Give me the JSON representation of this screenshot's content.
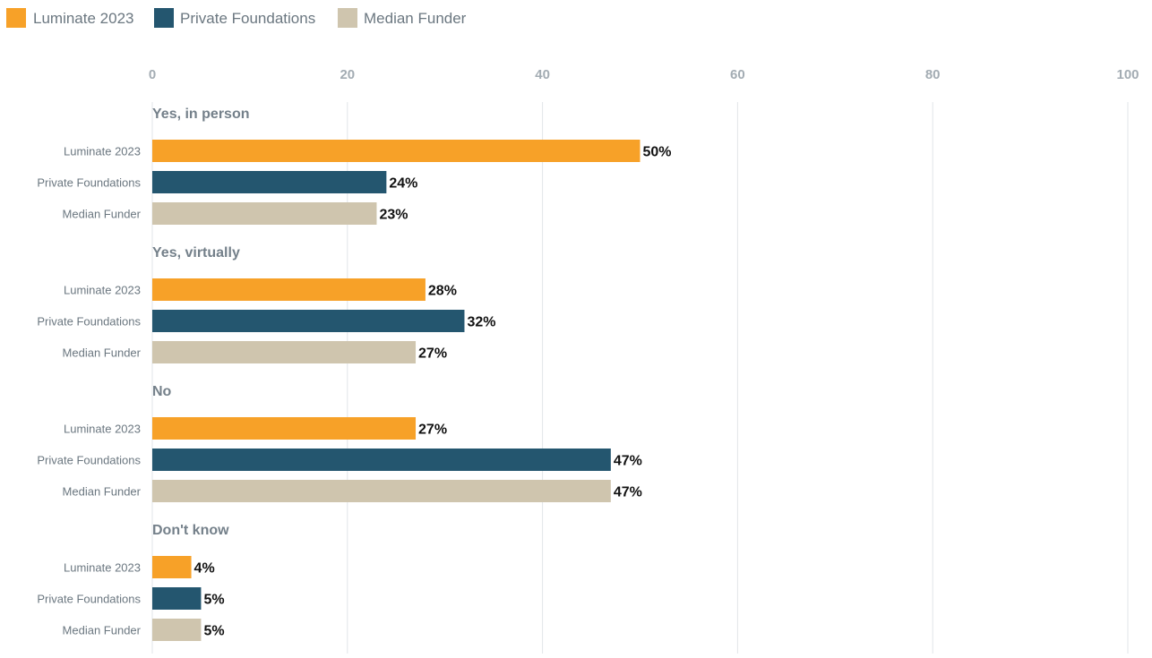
{
  "chart_data": {
    "type": "bar",
    "orientation": "horizontal",
    "title": "",
    "xlabel": "",
    "ylabel": "",
    "xlim": [
      0,
      100
    ],
    "x_ticks": [
      "0",
      "20",
      "40",
      "60",
      "80",
      "100"
    ],
    "grid": true,
    "legend_position": "top-left",
    "categories": [
      "Yes, in person",
      "Yes, virtually",
      "No",
      "Don't know"
    ],
    "series": [
      {
        "name": "Luminate 2023",
        "color": "#f7a128",
        "values": [
          50,
          28,
          27,
          4
        ],
        "labels": [
          "50%",
          "28%",
          "27%",
          "4%"
        ]
      },
      {
        "name": "Private Foundations",
        "color": "#24566f",
        "values": [
          24,
          32,
          47,
          5
        ],
        "labels": [
          "24%",
          "32%",
          "47%",
          "5%"
        ]
      },
      {
        "name": "Median Funder",
        "color": "#cfc5ae",
        "values": [
          23,
          27,
          47,
          5
        ],
        "labels": [
          "23%",
          "27%",
          "47%",
          "5%"
        ]
      }
    ]
  }
}
